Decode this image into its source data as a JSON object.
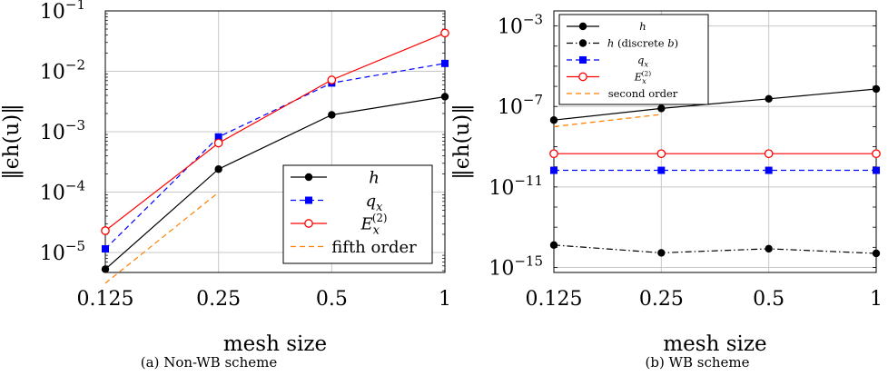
{
  "chart_data": [
    {
      "type": "line",
      "caption": "(a) Non-WB scheme",
      "xlabel": "mesh size",
      "ylabel": "‖ϵh(u)‖",
      "x_scale": "log2",
      "y_scale": "log10",
      "x_ticks": [
        0.125,
        0.25,
        0.5,
        1
      ],
      "x_tick_labels": [
        "0.125",
        "0.25",
        "0.5",
        "1"
      ],
      "y_ticks": [
        -5,
        -4,
        -3,
        -2,
        -1
      ],
      "y_tick_labels": [
        {
          "base": "10",
          "exp": "−5"
        },
        {
          "base": "10",
          "exp": "−4"
        },
        {
          "base": "10",
          "exp": "−3"
        },
        {
          "base": "10",
          "exp": "−2"
        },
        {
          "base": "10",
          "exp": "−1"
        }
      ],
      "xlim": [
        0.125,
        1
      ],
      "ylim_log10": [
        -5.33,
        -1.0
      ],
      "grid": true,
      "legend_position": "bottom-right",
      "series": [
        {
          "name": "h",
          "color": "#000000",
          "dash": "solid",
          "marker": "filled-circle",
          "x": [
            0.125,
            0.25,
            0.5,
            1
          ],
          "y": [
            5.3e-06,
            0.00024,
            0.0019,
            0.0038
          ]
        },
        {
          "name": "qx",
          "color": "#0000ff",
          "dash": "dashed",
          "marker": "filled-square",
          "x": [
            0.125,
            0.25,
            0.5,
            1
          ],
          "y": [
            1.15e-05,
            0.00082,
            0.0064,
            0.0135
          ]
        },
        {
          "name": "Ex(2)",
          "color": "#ff0000",
          "dash": "solid",
          "marker": "open-circle",
          "x": [
            0.125,
            0.25,
            0.5,
            1
          ],
          "y": [
            2.3e-05,
            0.00065,
            0.0072,
            0.043
          ]
        },
        {
          "name": "fifth order",
          "color": "#ff8000",
          "dash": "dashed",
          "marker": "none",
          "x": [
            0.125,
            0.25
          ],
          "y": [
            3.1e-06,
            9.9e-05
          ]
        }
      ]
    },
    {
      "type": "line",
      "caption": "(b) WB scheme",
      "xlabel": "mesh size",
      "ylabel": "‖ϵh(u)‖",
      "x_scale": "log2",
      "y_scale": "log10",
      "x_ticks": [
        0.125,
        0.25,
        0.5,
        1
      ],
      "x_tick_labels": [
        "0.125",
        "0.25",
        "0.5",
        "1"
      ],
      "y_ticks": [
        -15,
        -11,
        -7,
        -3
      ],
      "y_tick_labels": [
        {
          "base": "10",
          "exp": "−15"
        },
        {
          "base": "10",
          "exp": "−11"
        },
        {
          "base": "10",
          "exp": "−7"
        },
        {
          "base": "10",
          "exp": "−3"
        }
      ],
      "xlim": [
        0.125,
        1
      ],
      "ylim_log10": [
        -15.25,
        -2.25
      ],
      "grid": true,
      "legend_position": "top-left",
      "series": [
        {
          "name": "h",
          "color": "#000000",
          "dash": "solid",
          "marker": "filled-circle",
          "x": [
            0.125,
            0.25,
            0.5,
            1
          ],
          "y": [
            2.1e-08,
            8e-08,
            2.4e-07,
            7.4e-07
          ]
        },
        {
          "name": "h (discrete b)",
          "color": "#000000",
          "dash": "dashdot",
          "marker": "filled-circle",
          "x": [
            0.125,
            0.25,
            0.5,
            1
          ],
          "y": [
            1.3e-14,
            5.3e-15,
            8.5e-15,
            5e-15
          ]
        },
        {
          "name": "qx",
          "color": "#0000ff",
          "dash": "dashed",
          "marker": "filled-square",
          "x": [
            0.125,
            0.25,
            0.5,
            1
          ],
          "y": [
            6.7e-11,
            6.7e-11,
            6.7e-11,
            6.7e-11
          ]
        },
        {
          "name": "Ex(2)",
          "color": "#ff0000",
          "dash": "solid",
          "marker": "open-circle",
          "x": [
            0.125,
            0.25,
            0.5,
            1
          ],
          "y": [
            4.5e-10,
            4.5e-10,
            4.5e-10,
            4.5e-10
          ]
        },
        {
          "name": "second order",
          "color": "#ff8000",
          "dash": "dashed",
          "marker": "none",
          "x": [
            0.125,
            0.25
          ],
          "y": [
            1e-08,
            4e-08
          ]
        }
      ]
    }
  ]
}
